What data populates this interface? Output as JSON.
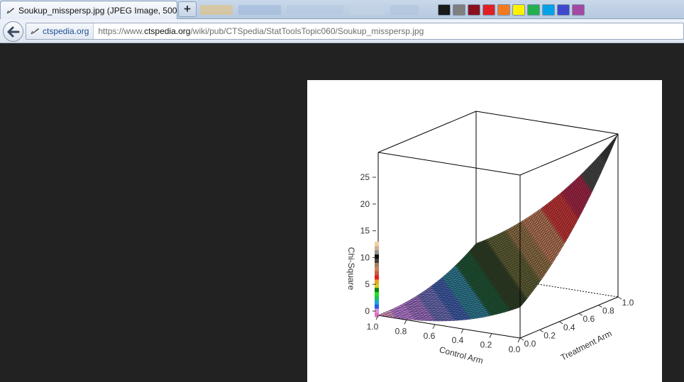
{
  "browser": {
    "tab": {
      "title": "Soukup_misspersp.jpg (JPEG Image, 500 ...",
      "favicon": "quill-icon"
    },
    "new_tab_label": "+",
    "toolbar_swatches": [
      "#1a1a1a",
      "#7f7f7f",
      "#8a1020",
      "#e01f26",
      "#f47a20",
      "#fff200",
      "#22b14c",
      "#00a2e8",
      "#3f48cc",
      "#a349a4"
    ],
    "back_icon": "back-arrow-icon",
    "identity_label": "ctspedia.org",
    "url": {
      "scheme": "https://www.",
      "domain": "ctspedia.org",
      "path": "/wiki/pub/CTSpedia/StatToolsTopic060/Soukup_misspersp.jpg"
    }
  },
  "chart_data": {
    "type": "surface",
    "z_label": "Chi-Square",
    "x_label": "Control Arm",
    "y_label": "Treatment Arm",
    "z_ticks": [
      "0",
      "5",
      "10",
      "15",
      "20",
      "25"
    ],
    "x_ticks": [
      "1.0",
      "0.8",
      "0.6",
      "0.4",
      "0.2",
      "0.0"
    ],
    "y_ticks": [
      "0.0",
      "0.2",
      "0.4",
      "0.6",
      "0.8",
      "1.0"
    ],
    "x_range": [
      0,
      1
    ],
    "y_range": [
      0,
      1
    ],
    "z_range": [
      0,
      28
    ],
    "surface_colors": [
      "#e8a0d0",
      "#c080e0",
      "#a070c8",
      "#6a6ab8",
      "#3c5aa8",
      "#2a7890",
      "#1a5030",
      "#2a3a20",
      "#5a5a30",
      "#8a6a40",
      "#b07050",
      "#c03030",
      "#a02040",
      "#404040",
      "#303030"
    ],
    "colorbar_colors": [
      "#e070c0",
      "#e090e0",
      "#2060e0",
      "#20a0e0",
      "#20c060",
      "#20e020",
      "#108010",
      "#d0d020",
      "#f0a020",
      "#e02020",
      "#c06040",
      "#d08060",
      "#a08060",
      "#404040",
      "#101010",
      "#909090",
      "#d0b090",
      "#f0d0a0"
    ]
  }
}
